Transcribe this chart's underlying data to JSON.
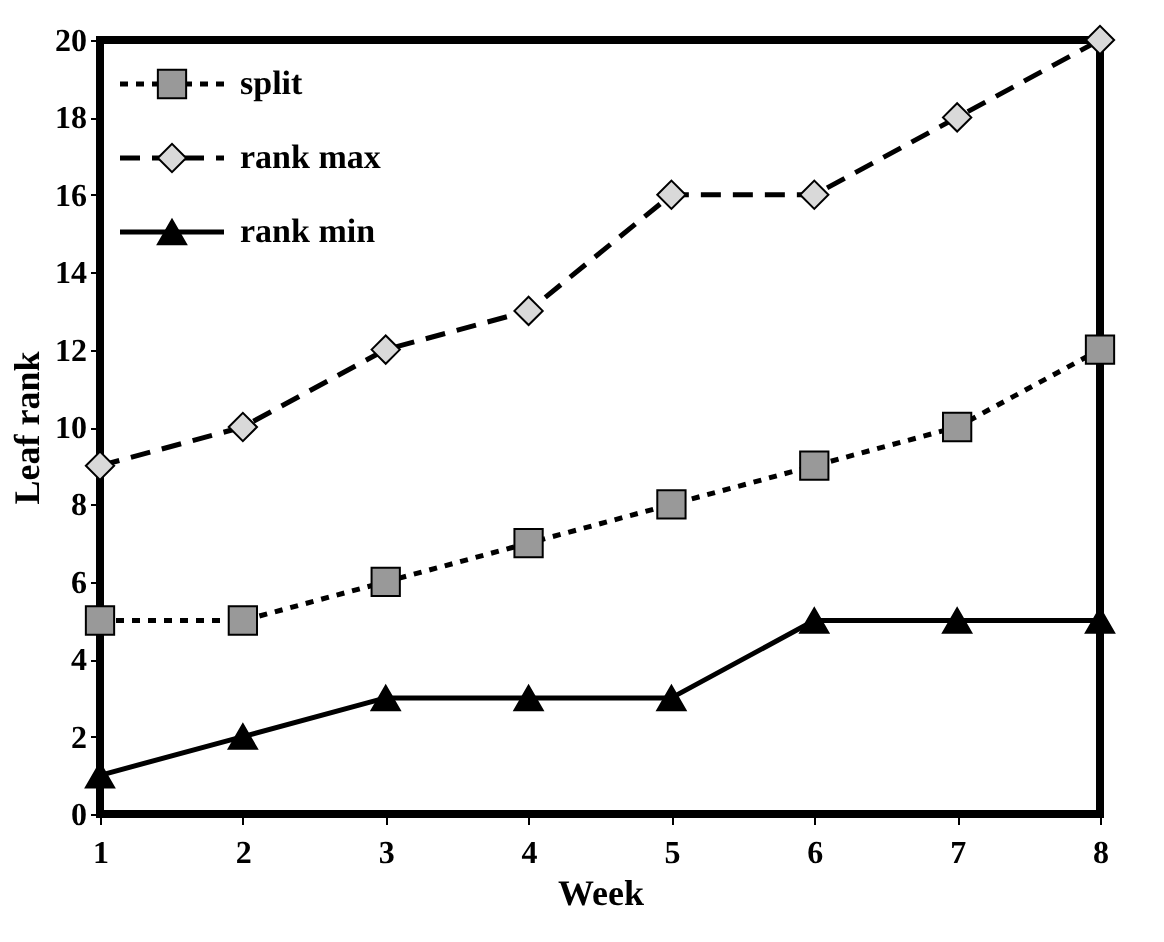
{
  "chart_data": {
    "type": "line",
    "xlabel": "Week",
    "ylabel": "Leaf rank",
    "x": [
      1,
      2,
      3,
      4,
      5,
      6,
      7,
      8
    ],
    "xlim": [
      1,
      8
    ],
    "xticks": [
      1,
      2,
      3,
      4,
      5,
      6,
      7,
      8
    ],
    "ylim": [
      0,
      20
    ],
    "yticks": [
      0,
      2,
      4,
      6,
      8,
      10,
      12,
      14,
      16,
      18,
      20
    ],
    "grid": false,
    "legend": "top left",
    "series": [
      {
        "name": "split",
        "color": "#999999",
        "marker": "square",
        "line_style": "dotted",
        "values": [
          5,
          5,
          6,
          7,
          8,
          9,
          10,
          12
        ]
      },
      {
        "name": "rank max",
        "color": "#d9d9d9",
        "marker": "diamond",
        "line_style": "dashed",
        "values": [
          9,
          10,
          12,
          13,
          16,
          16,
          18,
          20
        ]
      },
      {
        "name": "rank min",
        "color": "#000000",
        "marker": "triangle",
        "line_style": "solid",
        "values": [
          1,
          2,
          3,
          3,
          3,
          5,
          5,
          5
        ]
      }
    ]
  }
}
